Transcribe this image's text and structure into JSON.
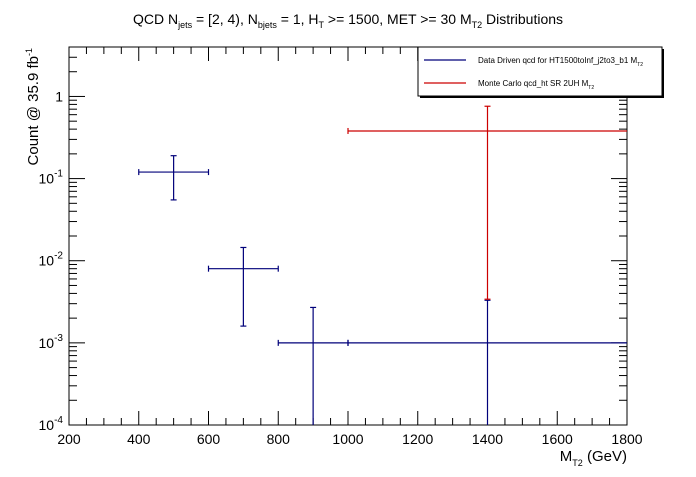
{
  "chart_data": {
    "type": "scatter",
    "title": {
      "parts": [
        {
          "t": "QCD N"
        },
        {
          "t": "jets",
          "sub": true
        },
        {
          "t": " = [2, 4), N"
        },
        {
          "t": "bjets",
          "sub": true
        },
        {
          "t": " = 1, H"
        },
        {
          "t": "T",
          "sub": true
        },
        {
          "t": " >= 1500, MET >= 30 M"
        },
        {
          "t": "T2",
          "sub": true
        },
        {
          "t": " Distributions"
        }
      ]
    },
    "xlabel": {
      "parts": [
        {
          "t": "M"
        },
        {
          "t": "T2",
          "sub": true
        },
        {
          "t": " (GeV)"
        }
      ]
    },
    "ylabel": {
      "parts": [
        {
          "t": "Count @ 35.9 fb"
        },
        {
          "t": "-1",
          "sup": true
        }
      ]
    },
    "xlim": [
      200,
      1800
    ],
    "ylim": [
      0.0001,
      4
    ],
    "ylog": true,
    "grid": false,
    "legend_position": "top-right",
    "x_ticks": [
      {
        "v": 200,
        "label": "200"
      },
      {
        "v": 400,
        "label": "400"
      },
      {
        "v": 600,
        "label": "600"
      },
      {
        "v": 800,
        "label": "800"
      },
      {
        "v": 1000,
        "label": "1000"
      },
      {
        "v": 1200,
        "label": "1200"
      },
      {
        "v": 1400,
        "label": "1400"
      },
      {
        "v": 1600,
        "label": "1600"
      },
      {
        "v": 1800,
        "label": "1800"
      }
    ],
    "y_ticks": [
      {
        "v": 0.0001,
        "base": "10",
        "exp": "-4"
      },
      {
        "v": 0.001,
        "base": "10",
        "exp": "-3"
      },
      {
        "v": 0.01,
        "base": "10",
        "exp": "-2"
      },
      {
        "v": 0.1,
        "base": "10",
        "exp": "-1"
      },
      {
        "v": 1,
        "base": "1",
        "exp": ""
      }
    ],
    "series": [
      {
        "name": {
          "parts": [
            {
              "t": "Data Driven qcd for HT1500toInf_j2to3_b1 M"
            },
            {
              "t": "T2",
              "sub": true
            }
          ]
        },
        "color": "#00007a",
        "points": [
          {
            "x": 500,
            "xlo": 400,
            "xhi": 600,
            "y": 0.12,
            "ylo": 0.055,
            "yhi": 0.19
          },
          {
            "x": 700,
            "xlo": 600,
            "xhi": 800,
            "y": 0.008,
            "ylo": 0.0016,
            "yhi": 0.0145
          },
          {
            "x": 900,
            "xlo": 800,
            "xhi": 1000,
            "y": 0.001,
            "ylo": 0.0001,
            "yhi": 0.0027
          },
          {
            "x": 1400,
            "xlo": 1000,
            "xhi": 1800,
            "y": 0.001,
            "ylo": 0.0001,
            "yhi": 0.0033
          }
        ]
      },
      {
        "name": {
          "parts": [
            {
              "t": "Monte Carlo qcd_ht SR 2UH M"
            },
            {
              "t": "T2",
              "sub": true
            }
          ]
        },
        "color": "#cc0000",
        "points": [
          {
            "x": 1400,
            "xlo": 1000,
            "xhi": 1800,
            "y": 0.38,
            "ylo": 0.0034,
            "yhi": 0.76
          }
        ]
      }
    ]
  }
}
